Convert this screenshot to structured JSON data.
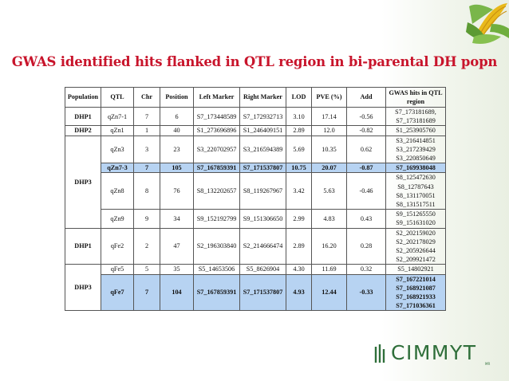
{
  "title": "GWAS identified hits flanked in QTL region in  bi-parental DH popn",
  "headers": [
    "Population",
    "QTL",
    "Chr",
    "Position",
    "Left Marker",
    "Right Marker",
    "LOD",
    "PVE (%)",
    "Add",
    "GWAS hits in QTL region"
  ],
  "populations": {
    "dhp1a": "DHP1",
    "dhp2": "DHP2",
    "dhp3a": "DHP3",
    "dhp1b": "DHP1",
    "dhp3b": "DHP3"
  },
  "rows": [
    {
      "qtl": "qZn7-1",
      "chr": "7",
      "pos": "6",
      "left": "S7_173448589",
      "right": "S7_172932713",
      "lod": "3.10",
      "pve": "17.14",
      "add": "-0.56",
      "hits": [
        "S7_173181689,",
        "S7_173181689"
      ]
    },
    {
      "qtl": "qZn1",
      "chr": "1",
      "pos": "40",
      "left": "S1_273696896",
      "right": "S1_246409151",
      "lod": "2.89",
      "pve": "12.0",
      "add": "-0.82",
      "hits": [
        "S1_253905760"
      ]
    },
    {
      "qtl": "qZn3",
      "chr": "3",
      "pos": "23",
      "left": "S3_220702957",
      "right": "S3_216594389",
      "lod": "5.69",
      "pve": "10.35",
      "add": "0.62",
      "hits": [
        "S3_216414851",
        "S3_217239429",
        "S3_220850649"
      ]
    },
    {
      "qtl": "qZn7-3",
      "chr": "7",
      "pos": "105",
      "left": "S7_167859391",
      "right": "S7_171537807",
      "lod": "10.75",
      "pve": "20.07",
      "add": "-0.87",
      "hits": [
        "S7_169938048"
      ]
    },
    {
      "qtl": "qZn8",
      "chr": "8",
      "pos": "76",
      "left": "S8_132202657",
      "right": "S8_119267967",
      "lod": "3.42",
      "pve": "5.63",
      "add": "-0.46",
      "hits": [
        "S8_125472630",
        "S8_12787643",
        "S8_131170051",
        "S8_131517511"
      ]
    },
    {
      "qtl": "qZn9",
      "chr": "9",
      "pos": "34",
      "left": "S9_152192799",
      "right": "S9_151306650",
      "lod": "2.99",
      "pve": "4.83",
      "add": "0.43",
      "hits": [
        "S9_151265550",
        "S9_151631020"
      ]
    },
    {
      "qtl": "qFe2",
      "chr": "2",
      "pos": "47",
      "left": "S2_196303840",
      "right": "S2_214666474",
      "lod": "2.89",
      "pve": "16.20",
      "add": "0.28",
      "hits": [
        "S2_202159020",
        "S2_202178029",
        "S2_205926644",
        "S2_209921472"
      ]
    },
    {
      "qtl": "qFe5",
      "chr": "5",
      "pos": "35",
      "left": "S5_14653506",
      "right": "S5_8626904",
      "lod": "4.30",
      "pve": "11.69",
      "add": "0.32",
      "hits": [
        "S5_14802921"
      ]
    },
    {
      "qtl": "qFe7",
      "chr": "7",
      "pos": "104",
      "left": "S7_167859391",
      "right": "S7_171537807",
      "lod": "4.93",
      "pve": "12.44",
      "add": "-0.33",
      "hits": [
        "S7_167221014",
        "S7_168921087",
        "S7_168921933",
        "S7_171036361"
      ]
    }
  ],
  "logo": {
    "text": "CIMMYT",
    "reg": "MR"
  },
  "colors": {
    "title": "#c8142b",
    "highlight": "#b7d3f2",
    "logo": "#2f6f3a"
  },
  "icons": [
    "corn-icon",
    "wheat-leaf-icon"
  ]
}
